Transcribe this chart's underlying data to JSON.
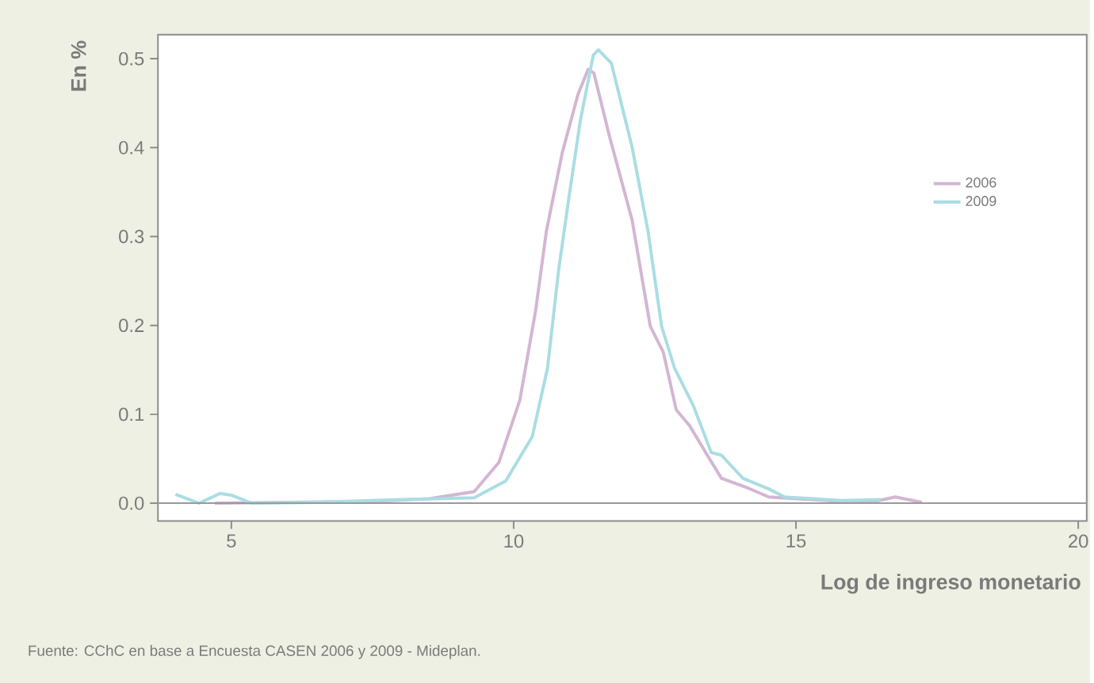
{
  "chart_data": {
    "type": "line",
    "ylabel": "En %",
    "xlabel": "Log de ingreso monetario",
    "annotations": [
      "Fuente: CChC en base a Encuesta CASEN 2006 y 2009 - Mideplan."
    ],
    "xlim": [
      3.7,
      20.15
    ],
    "ylim": [
      -0.02,
      0.527
    ],
    "xticks": [
      5,
      10,
      15,
      20
    ],
    "yticks": [
      {
        "value": 0,
        "label": "0.0"
      },
      {
        "value": 0.1,
        "label": "0.1"
      },
      {
        "value": 0.2,
        "label": "0.2"
      },
      {
        "value": 0.3,
        "label": "0.3"
      },
      {
        "value": 0.4,
        "label": "0.4"
      },
      {
        "value": 0.5,
        "label": "0.5"
      }
    ],
    "ref_lines": [
      {
        "axis": "y",
        "value": 0,
        "color": "#9a9a9a"
      }
    ],
    "legend": "right",
    "grid": false,
    "marker": "none",
    "line_style": "solid",
    "series": [
      {
        "name": "2006",
        "color": "#d3b6d3",
        "x": [
          4.71,
          6.0,
          7.5,
          8.5,
          9.3,
          9.74,
          10.11,
          10.39,
          10.58,
          10.86,
          11.14,
          11.32,
          11.42,
          11.7,
          12.1,
          12.42,
          12.65,
          12.88,
          13.12,
          13.4,
          13.68,
          14.15,
          14.52,
          15.8,
          16.4,
          16.76,
          17.23
        ],
        "values": [
          0,
          0.001,
          0.002,
          0.005,
          0.013,
          0.046,
          0.116,
          0.217,
          0.306,
          0.394,
          0.46,
          0.488,
          0.484,
          0.412,
          0.318,
          0.199,
          0.17,
          0.105,
          0.087,
          0.057,
          0.028,
          0.017,
          0.007,
          0.002,
          0.002,
          0.007,
          0.001
        ]
      },
      {
        "name": "2009",
        "color": "#a9dde3",
        "x": [
          4.01,
          4.43,
          4.8,
          5.0,
          5.36,
          6.5,
          8.0,
          9.3,
          9.86,
          10.33,
          10.6,
          10.8,
          11.0,
          11.18,
          11.41,
          11.5,
          11.73,
          12.1,
          12.38,
          12.62,
          12.85,
          13.18,
          13.5,
          13.68,
          14.06,
          14.52,
          14.8,
          15.8,
          16.5
        ],
        "values": [
          0.01,
          0,
          0.011,
          0.009,
          0,
          0.001,
          0.004,
          0.006,
          0.025,
          0.075,
          0.152,
          0.264,
          0.353,
          0.43,
          0.504,
          0.51,
          0.495,
          0.4,
          0.306,
          0.199,
          0.152,
          0.11,
          0.057,
          0.054,
          0.028,
          0.016,
          0.007,
          0.003,
          0.004
        ]
      }
    ]
  }
}
